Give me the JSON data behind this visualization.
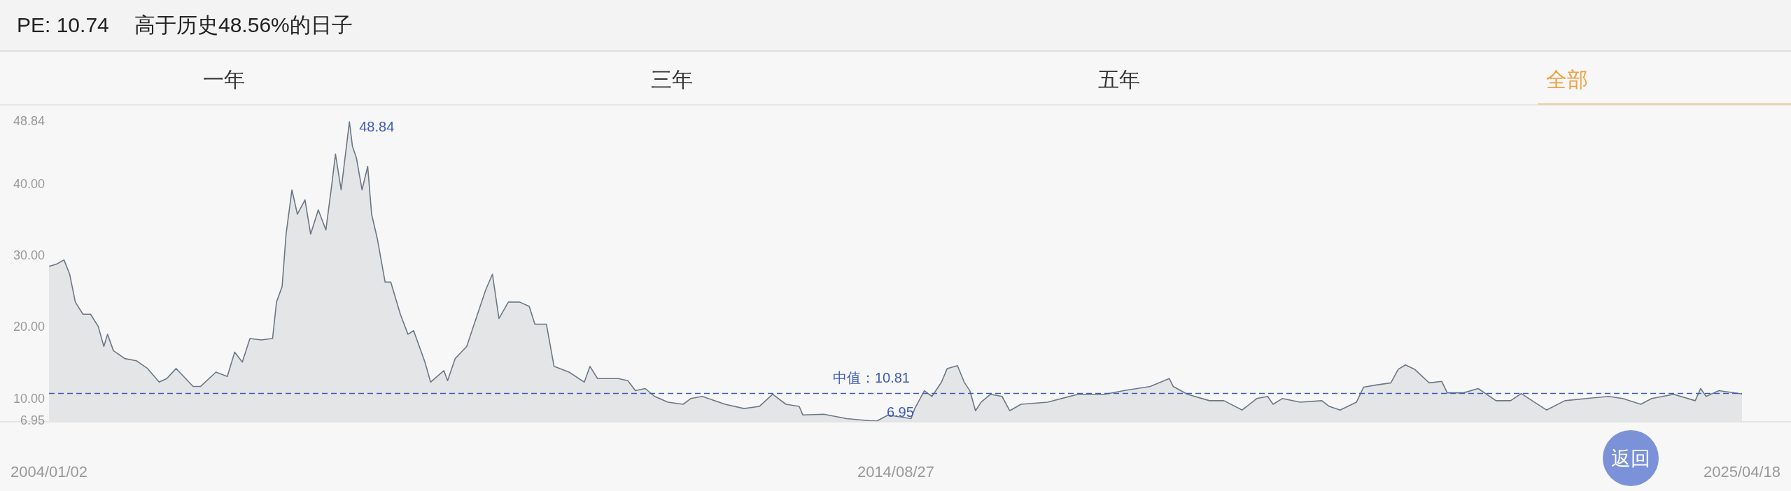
{
  "chart_data": {
    "type": "area",
    "title": "PE: 10.74",
    "subtitle": "高于历史48.56%的日子",
    "x": [
      "2004-01-02",
      "2004-02-05",
      "2004-03-11",
      "2004-04-06",
      "2004-05-02",
      "2004-06-06",
      "2004-07-11",
      "2004-08-15",
      "2004-09-10",
      "2004-09-27",
      "2004-10-24",
      "2004-12-15",
      "2005-02-06",
      "2005-03-30",
      "2005-05-22",
      "2005-06-26",
      "2005-08-08",
      "2005-10-25",
      "2005-11-29",
      "2006-02-07",
      "2006-03-31",
      "2006-05-04",
      "2006-06-08",
      "2006-07-13",
      "2006-09-03",
      "2006-10-25",
      "2006-11-12",
      "2006-12-08",
      "2006-12-26",
      "2007-01-22",
      "2007-02-16",
      "2007-03-23",
      "2007-04-18",
      "2007-05-23",
      "2007-06-27",
      "2007-07-23",
      "2007-08-10",
      "2007-09-05",
      "2007-10-13",
      "2007-10-27",
      "2007-11-14",
      "2007-12-10",
      "2008-01-05",
      "2008-01-23",
      "2008-02-18",
      "2008-03-25",
      "2008-04-20",
      "2008-06-03",
      "2008-07-08",
      "2008-08-03",
      "2008-09-24",
      "2008-10-20",
      "2008-12-20",
      "2009-01-06",
      "2009-02-10",
      "2009-04-04",
      "2009-05-08",
      "2009-06-30",
      "2009-07-31",
      "2009-08-30",
      "2009-10-12",
      "2009-12-03",
      "2010-01-16",
      "2010-02-11",
      "2010-04-05",
      "2010-05-10",
      "2010-07-18",
      "2010-09-26",
      "2010-10-22",
      "2010-11-26",
      "2011-03-01",
      "2011-04-14",
      "2011-05-19",
      "2011-07-03",
      "2011-08-15",
      "2011-10-15",
      "2011-12-24",
      "2012-01-28",
      "2012-03-21",
      "2012-07-04",
      "2012-09-29",
      "2012-12-08",
      "2013-02-07",
      "2013-04-09",
      "2013-06-09",
      "2013-06-26",
      "2013-09-30",
      "2014-01-13",
      "2014-04-28",
      "2014-06-01",
      "2014-07-23",
      "2014-11-05",
      "2014-11-22",
      "2015-01-05",
      "2015-02-09",
      "2015-03-25",
      "2015-04-20",
      "2015-06-06",
      "2015-07-07",
      "2015-08-02",
      "2015-08-28",
      "2015-09-23",
      "2015-11-05",
      "2015-12-28",
      "2016-02-01",
      "2016-03-24",
      "2016-07-24",
      "2016-12-11",
      "2017-04-13",
      "2017-07-09",
      "2017-11-08",
      "2018-02-03",
      "2018-02-21",
      "2018-04-28",
      "2018-08-07",
      "2018-10-12",
      "2019-01-04",
      "2019-03-12",
      "2019-05-01",
      "2019-05-26",
      "2019-07-07",
      "2019-09-28",
      "2020-01-05",
      "2020-02-08",
      "2020-03-29",
      "2020-06-12",
      "2020-07-15",
      "2020-09-12",
      "2020-11-17",
      "2020-12-21",
      "2021-01-23",
      "2021-03-06",
      "2021-05-12",
      "2021-07-09",
      "2021-08-03",
      "2021-10-17",
      "2021-12-23",
      "2022-03-15",
      "2022-05-21",
      "2022-07-09",
      "2022-08-28",
      "2022-11-02",
      "2023-01-25",
      "2023-05-05",
      "2023-08-13",
      "2023-10-18",
      "2024-01-09",
      "2024-02-28",
      "2024-06-08",
      "2024-09-15",
      "2024-10-10",
      "2024-11-04",
      "2025-01-02",
      "2025-04-18"
    ],
    "series": [
      {
        "color": "#6b7785",
        "values": [
          28.6,
          28.9,
          29.5,
          27.5,
          23.6,
          21.9,
          21.9,
          20.2,
          17.4,
          19.1,
          16.8,
          15.7,
          15.4,
          14.3,
          12.4,
          12.9,
          14.3,
          11.8,
          11.8,
          13.8,
          13.2,
          16.6,
          15.2,
          18.5,
          18.3,
          18.5,
          23.6,
          25.8,
          33.1,
          39.3,
          35.9,
          37.9,
          33.1,
          36.5,
          33.7,
          39.8,
          44.3,
          39.3,
          48.84,
          45.4,
          43.8,
          39.3,
          42.6,
          35.9,
          32.5,
          26.4,
          26.4,
          21.9,
          19.1,
          19.6,
          15.2,
          12.4,
          14.0,
          12.6,
          15.7,
          17.4,
          20.5,
          25.3,
          27.5,
          21.3,
          23.6,
          23.6,
          23.0,
          20.5,
          20.5,
          14.6,
          13.8,
          12.4,
          14.6,
          12.9,
          12.9,
          12.6,
          11.2,
          11.5,
          10.4,
          9.6,
          9.3,
          10.1,
          10.4,
          9.3,
          8.7,
          9.0,
          10.7,
          9.3,
          9.0,
          7.8,
          7.9,
          7.3,
          7.0,
          6.95,
          7.8,
          7.3,
          8.7,
          11.2,
          10.4,
          12.4,
          14.3,
          14.7,
          12.4,
          11.2,
          8.4,
          9.6,
          10.7,
          10.4,
          8.4,
          9.3,
          9.6,
          10.7,
          10.7,
          11.2,
          11.8,
          12.9,
          11.8,
          10.7,
          9.8,
          9.8,
          8.5,
          10.1,
          10.4,
          9.3,
          10.1,
          9.6,
          9.8,
          9.0,
          8.5,
          9.6,
          11.7,
          12.0,
          12.3,
          14.2,
          14.8,
          14.2,
          12.3,
          12.5,
          10.9,
          10.9,
          11.5,
          9.8,
          9.8,
          10.8,
          9.8,
          8.5,
          9.8,
          10.1,
          10.4,
          10.1,
          9.3,
          10.1,
          10.7,
          9.8,
          11.5,
          10.4,
          11.2,
          10.74
        ]
      }
    ],
    "xlim": [
      "2004-01-02",
      "2025-04-18"
    ],
    "xticks": [
      {
        "value": "2004-01-02",
        "label": "2004/01/02"
      },
      {
        "value": "2014-08-27",
        "label": "2014/08/27"
      },
      {
        "value": "2025-04-18",
        "label": "2025/04/18"
      }
    ],
    "ylim": [
      6.95,
      48.84
    ],
    "yticks": [
      {
        "value": 6.95,
        "label": "6.95"
      },
      {
        "value": 10,
        "label": "10.00"
      },
      {
        "value": 20,
        "label": "20.00"
      },
      {
        "value": 30,
        "label": "30.00"
      },
      {
        "value": 40,
        "label": "40.00"
      },
      {
        "value": 48.84,
        "label": "48.84"
      }
    ],
    "ref_lines": [
      {
        "axis": "y",
        "value": 10.81,
        "label": "中值：10.81",
        "color": "#3d5cb8",
        "line_style": "dashed"
      }
    ],
    "annotations": [
      "一年",
      "三年",
      "五年",
      "全部",
      {
        "text": "48.84",
        "x": "2007-10-13",
        "y": 48.84
      },
      {
        "text": "6.95",
        "x": "2014-06-01",
        "y": 6.95
      },
      "返回"
    ]
  }
}
